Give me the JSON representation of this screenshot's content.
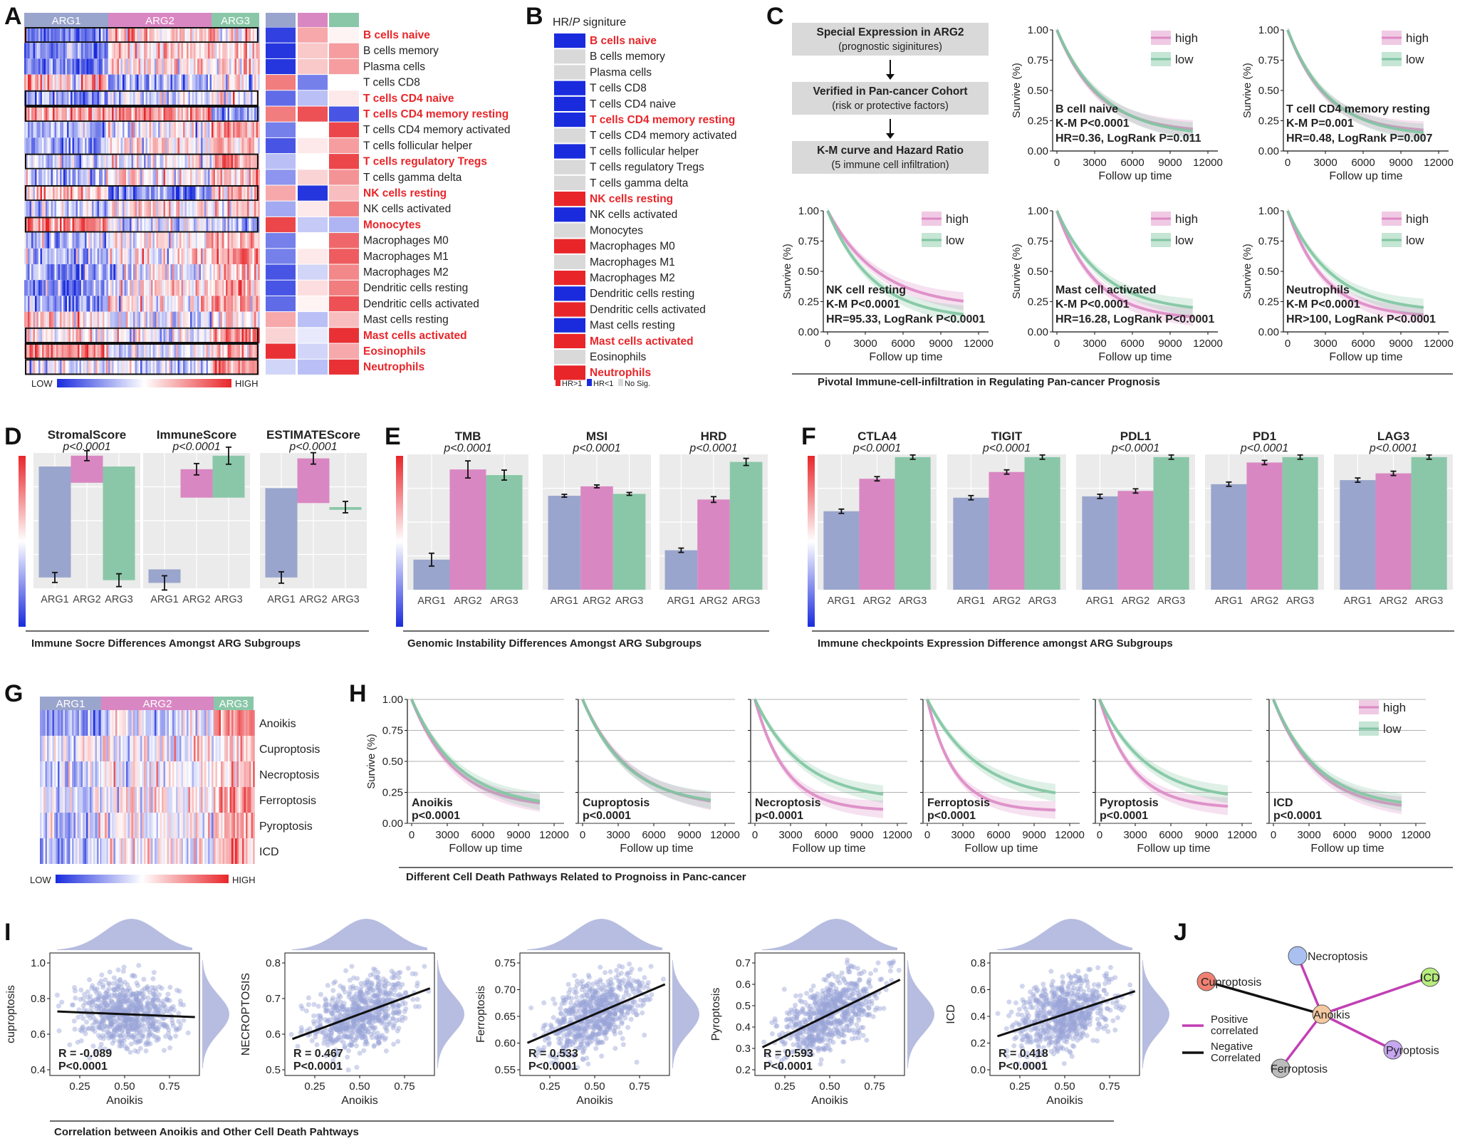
{
  "colors": {
    "arg1": "#9aa5cd",
    "arg2": "#d987c2",
    "arg3": "#8ac7a8",
    "high": "#dd89c4",
    "low": "#7fc5a1",
    "red": "#e8262a",
    "blue": "#1a2bdd",
    "grey": "#d9d9d9"
  },
  "panels": {
    "A": "A",
    "B": "B",
    "C": "C",
    "D": "D",
    "E": "E",
    "F": "F",
    "G": "G",
    "H": "H",
    "I": "I",
    "J": "J"
  },
  "A": {
    "groups": [
      "ARG1",
      "ARG2",
      "ARG3"
    ],
    "legend": {
      "low": "LOW",
      "high": "HIGH"
    },
    "rows": [
      {
        "label": "B cells naive",
        "highlight": true,
        "box": true,
        "col": [
          -0.9,
          0.4,
          0.05
        ]
      },
      {
        "label": "B cells memory",
        "highlight": false,
        "box": false,
        "col": [
          -0.95,
          0.25,
          0.45
        ]
      },
      {
        "label": "Plasma cells",
        "highlight": false,
        "box": false,
        "col": [
          -0.95,
          0.25,
          0.45
        ]
      },
      {
        "label": "T cells CD8",
        "highlight": false,
        "box": false,
        "col": [
          0.6,
          -0.6,
          0.0
        ]
      },
      {
        "label": "T cells CD4 naive",
        "highlight": true,
        "box": true,
        "col": [
          -0.7,
          -0.3,
          0.1
        ]
      },
      {
        "label": "T cells CD4 memory resting",
        "highlight": true,
        "box": true,
        "col": [
          0.6,
          0.8,
          -0.8
        ]
      },
      {
        "label": "T cells CD4 memory activated",
        "highlight": false,
        "box": false,
        "col": [
          -0.6,
          0.0,
          0.85
        ]
      },
      {
        "label": "T cells follicular helper",
        "highlight": false,
        "box": false,
        "col": [
          -0.8,
          0.1,
          0.45
        ]
      },
      {
        "label": "T cells regulatory Tregs",
        "highlight": true,
        "box": true,
        "col": [
          -0.3,
          0.0,
          0.85
        ]
      },
      {
        "label": "T cells gamma delta",
        "highlight": false,
        "box": false,
        "col": [
          -0.5,
          0.2,
          0.5
        ]
      },
      {
        "label": "NK cells resting",
        "highlight": true,
        "box": true,
        "col": [
          0.4,
          -0.95,
          0.3
        ]
      },
      {
        "label": "NK cells activated",
        "highlight": false,
        "box": false,
        "col": [
          -0.4,
          0.1,
          0.6
        ]
      },
      {
        "label": "Monocytes",
        "highlight": true,
        "box": true,
        "col": [
          0.85,
          -0.25,
          -0.35
        ]
      },
      {
        "label": "Macrophages M0",
        "highlight": false,
        "box": false,
        "col": [
          -0.6,
          0.0,
          0.7
        ]
      },
      {
        "label": "Macrophages M1",
        "highlight": false,
        "box": false,
        "col": [
          -0.6,
          0.1,
          0.75
        ]
      },
      {
        "label": "Macrophages M2",
        "highlight": false,
        "box": false,
        "col": [
          -0.8,
          -0.2,
          0.55
        ]
      },
      {
        "label": "Dendritic cells resting",
        "highlight": false,
        "box": false,
        "col": [
          -0.8,
          0.15,
          0.6
        ]
      },
      {
        "label": "Dendritic cells activated",
        "highlight": false,
        "box": false,
        "col": [
          -0.7,
          0.05,
          0.8
        ]
      },
      {
        "label": "Mast cells resting",
        "highlight": false,
        "box": false,
        "col": [
          0.4,
          -0.3,
          0.3
        ]
      },
      {
        "label": "Mast cells activated",
        "highlight": true,
        "box": true,
        "col": [
          0.2,
          -0.1,
          0.95
        ]
      },
      {
        "label": "Eosinophils",
        "highlight": true,
        "box": true,
        "col": [
          0.95,
          -0.2,
          0.4
        ]
      },
      {
        "label": "Neutrophils",
        "highlight": true,
        "box": true,
        "col": [
          -0.2,
          -0.3,
          0.95
        ]
      }
    ]
  },
  "B": {
    "title": "HR/P signiture",
    "title_prefix": "HR/",
    "title_p": "P",
    "title_suffix": " signiture",
    "legend": [
      "HR>1",
      "HR<1",
      "No Sig."
    ],
    "rows": [
      {
        "label": "B cells naive",
        "hr": "low",
        "highlight": true
      },
      {
        "label": "B cells memory",
        "hr": "ns",
        "highlight": false
      },
      {
        "label": "Plasma cells",
        "hr": "ns",
        "highlight": false
      },
      {
        "label": "T cells CD8",
        "hr": "low",
        "highlight": false
      },
      {
        "label": "T cells CD4 naive",
        "hr": "low",
        "highlight": false
      },
      {
        "label": "T cells CD4 memory resting",
        "hr": "low",
        "highlight": true
      },
      {
        "label": "T cells CD4 memory activated",
        "hr": "ns",
        "highlight": false
      },
      {
        "label": "T cells follicular helper",
        "hr": "low",
        "highlight": false
      },
      {
        "label": "T cells regulatory Tregs",
        "hr": "ns",
        "highlight": false
      },
      {
        "label": "T cells gamma delta",
        "hr": "ns",
        "highlight": false
      },
      {
        "label": "NK cells resting",
        "hr": "high",
        "highlight": true
      },
      {
        "label": "NK cells activated",
        "hr": "low",
        "highlight": false
      },
      {
        "label": "Monocytes",
        "hr": "ns",
        "highlight": false
      },
      {
        "label": "Macrophages M0",
        "hr": "high",
        "highlight": false
      },
      {
        "label": "Macrophages M1",
        "hr": "ns",
        "highlight": false
      },
      {
        "label": "Macrophages M2",
        "hr": "high",
        "highlight": false
      },
      {
        "label": "Dendritic cells resting",
        "hr": "low",
        "highlight": false
      },
      {
        "label": "Dendritic cells activated",
        "hr": "high",
        "highlight": false
      },
      {
        "label": "Mast cells resting",
        "hr": "low",
        "highlight": false
      },
      {
        "label": "Mast cells activated",
        "hr": "high",
        "highlight": true
      },
      {
        "label": "Eosinophils",
        "hr": "ns",
        "highlight": false
      },
      {
        "label": "Neutrophils",
        "hr": "high",
        "highlight": true
      }
    ]
  },
  "C": {
    "flow": [
      {
        "title": "Special Expression in ARG2",
        "sub": "(prognostic siginitures)"
      },
      {
        "title": "Verified in Pan-cancer Cohort",
        "sub": "(risk or protective factors)"
      },
      {
        "title": "K-M curve and Hazard Ratio",
        "sub": "(5 immune cell infiltration)"
      }
    ],
    "caption": "Pivotal Immune-cell-infiltration in Regulating Pan-cancer Prognosis",
    "ylabel": "Survive (%)",
    "xlabel": "Follow up time",
    "yticks": [
      "0.00",
      "0.25",
      "0.50",
      "0.75",
      "1.00"
    ],
    "xticks": [
      "0",
      "3000",
      "6000",
      "9000",
      "12000"
    ],
    "legend": [
      "high",
      "low"
    ],
    "plots": [
      {
        "name": "B cell naive",
        "km": "K-M P<0.0001",
        "hr": "HR=0.36, LogRank P=0.011"
      },
      {
        "name": "T cell CD4 memory resting",
        "km": "K-M P=0.001",
        "hr": "HR=0.48, LogRank P=0.007"
      },
      {
        "name": "NK cell resting",
        "km": "K-M P<0.0001",
        "hr": "HR=95.33, LogRank P<0.0001"
      },
      {
        "name": "Mast cell activated",
        "km": "K-M P<0.0001",
        "hr": "HR=16.28, LogRank P<0.0001"
      },
      {
        "name": "Neutrophils",
        "km": "K-M P<0.0001",
        "hr": "HR>100, LogRank P<0.0001"
      }
    ]
  },
  "D": {
    "caption": "Immune Socre Differences Amongst ARG Subgroups",
    "groups": [
      "ARG1",
      "ARG2",
      "ARG3"
    ],
    "plots": [
      {
        "title": "StromalScore",
        "p": "p<0.0001"
      },
      {
        "title": "ImmuneScore",
        "p": "p<0.0001"
      },
      {
        "title": "ESTIMATEScore",
        "p": "p<0.0001"
      }
    ]
  },
  "E": {
    "caption": "Genomic Instability Differences Amongst ARG Subgroups",
    "groups": [
      "ARG1",
      "ARG2",
      "ARG3"
    ],
    "plots": [
      {
        "title": "TMB",
        "p": "p<0.0001"
      },
      {
        "title": "MSI",
        "p": "p<0.0001"
      },
      {
        "title": "HRD",
        "p": "p<0.0001"
      }
    ]
  },
  "F": {
    "caption": "Immune checkpoints Expression Difference amongst ARG Subgroups",
    "groups": [
      "ARG1",
      "ARG2",
      "ARG3"
    ],
    "plots": [
      {
        "title": "CTLA4",
        "p": "p<0.0001"
      },
      {
        "title": "TIGIT",
        "p": "p<0.0001"
      },
      {
        "title": "PDL1",
        "p": "p<0.0001"
      },
      {
        "title": "PD1",
        "p": "p<0.0001"
      },
      {
        "title": "LAG3",
        "p": "p<0.0001"
      }
    ]
  },
  "G": {
    "groups": [
      "ARG1",
      "ARG2",
      "ARG3"
    ],
    "rows": [
      "Anoikis",
      "Cuproptosis",
      "Necroptosis",
      "Ferroptosis",
      "Pyroptosis",
      "ICD"
    ],
    "legend": {
      "low": "LOW",
      "high": "HIGH"
    }
  },
  "H": {
    "caption": "Different Cell Death Pathways Related to Prognoiss in Panc-cancer",
    "ylabel": "Survive (%)",
    "xlabel": "Follow up time",
    "yticks": [
      "0.00",
      "0.25",
      "0.50",
      "0.75",
      "1.00"
    ],
    "xticks": [
      "0",
      "3000",
      "6000",
      "9000",
      "12000"
    ],
    "legend": [
      "high",
      "low"
    ],
    "plots": [
      {
        "name": "Anoikis",
        "p": "p<0.0001"
      },
      {
        "name": "Cuproptosis",
        "p": "p<0.0001"
      },
      {
        "name": "Necroptosis",
        "p": "p<0.0001"
      },
      {
        "name": "Ferroptosis",
        "p": "p<0.0001"
      },
      {
        "name": "Pyroptosis",
        "p": "p<0.0001"
      },
      {
        "name": "ICD",
        "p": "p<0.0001"
      }
    ]
  },
  "I": {
    "caption": "Correlation between Anoikis and Other Cell Death Pahtways",
    "xlabel": "Anoikis",
    "xticks": [
      "0.25",
      "0.50",
      "0.75"
    ],
    "plots": [
      {
        "ylabel": "cuproptosis",
        "yticks": [
          "0.4",
          "0.6",
          "0.8",
          "1.0"
        ],
        "r": "R = -0.089",
        "p": "P<0.0001"
      },
      {
        "ylabel": "NECROPTOSIS",
        "yticks": [
          "0.5",
          "0.6",
          "0.7",
          "0.8"
        ],
        "r": "R = 0.467",
        "p": "P<0.0001"
      },
      {
        "ylabel": "Ferroptosis",
        "yticks": [
          "0.55",
          "0.60",
          "0.65",
          "0.70",
          "0.75"
        ],
        "r": "R = 0.533",
        "p": "P<0.0001"
      },
      {
        "ylabel": "Pyroptosis",
        "yticks": [
          "0.2",
          "0.3",
          "0.4",
          "0.5",
          "0.6",
          "0.7"
        ],
        "r": "R = 0.593",
        "p": "P<0.0001"
      },
      {
        "ylabel": "ICD",
        "yticks": [
          "0.0",
          "0.2",
          "0.4",
          "0.6",
          "0.8"
        ],
        "r": "R = 0.418",
        "p": "P<0.0001"
      }
    ]
  },
  "J": {
    "nodes": [
      "Necroptosis",
      "ICD",
      "Cuproptosis",
      "Anoikis",
      "Pyroptosis",
      "Ferroptosis"
    ],
    "legend": {
      "positive": "Positive\ncorrelated",
      "negative": "Negative\nCorrelated"
    },
    "positive_l1": "Positive",
    "positive_l2": "correlated",
    "negative_l1": "Negative",
    "negative_l2": "Correlated"
  }
}
